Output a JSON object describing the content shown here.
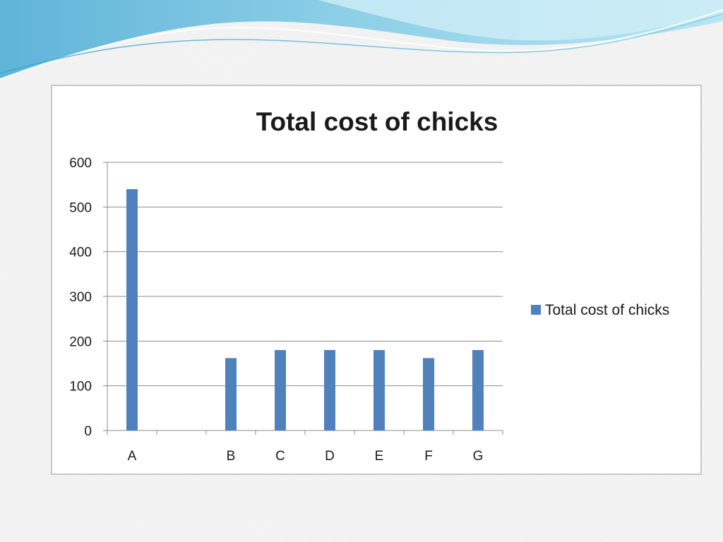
{
  "colors": {
    "bar": "#4f81bd",
    "gridline": "#8c8c8c",
    "axis": "#8c8c8c"
  },
  "chart_data": {
    "type": "bar",
    "title": "Total cost of chicks",
    "xlabel": "",
    "ylabel": "",
    "categories": [
      "A",
      "",
      "B",
      "C",
      "D",
      "E",
      "F",
      "G"
    ],
    "series": [
      {
        "name": "Total cost of chicks",
        "values": [
          540,
          null,
          162,
          180,
          180,
          180,
          162,
          180
        ]
      }
    ],
    "ylim": [
      0,
      600
    ],
    "yticks": [
      0,
      100,
      200,
      300,
      400,
      500,
      600
    ],
    "grid": true,
    "legend": "right"
  }
}
